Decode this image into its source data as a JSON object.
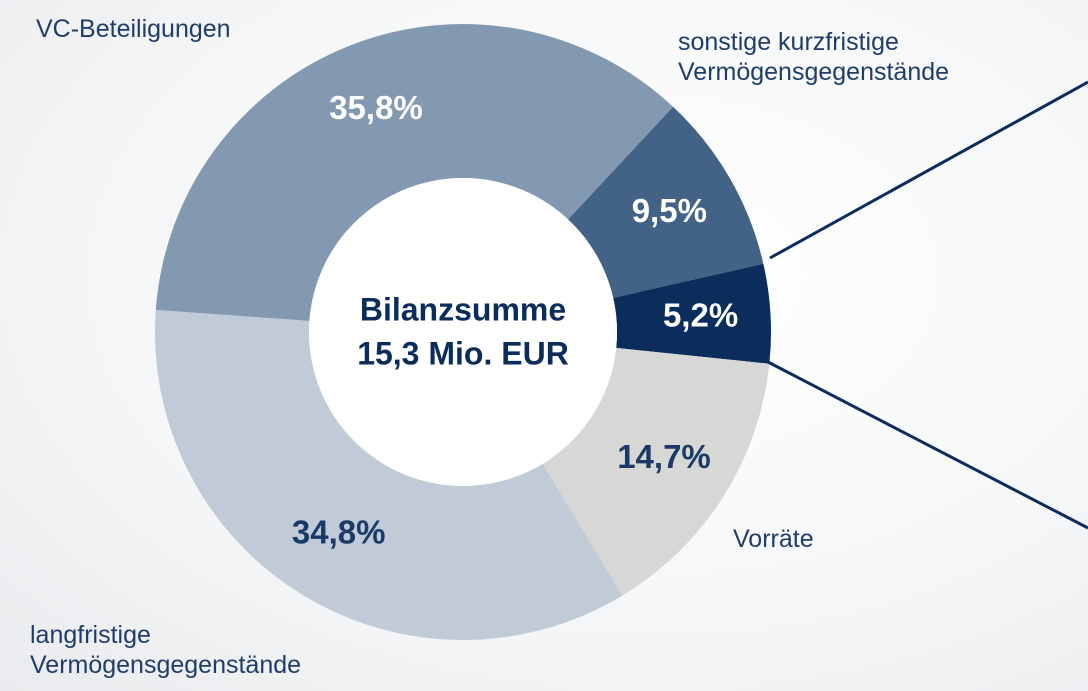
{
  "chart_data": {
    "type": "donut",
    "center_label": [
      "Bilanzsumme",
      "15,3 Mio. EUR"
    ],
    "categories": [
      "sonstige kurzfristige Vermögensgegenstände",
      null,
      "Vorräte",
      "langfristige Vermögensgegenstände",
      "VC-Beteiligungen"
    ],
    "values": [
      9.5,
      5.2,
      14.7,
      34.8,
      35.8
    ],
    "value_labels": [
      "9,5%",
      "5,2%",
      "14,7%",
      "34,8%",
      "35,8%"
    ],
    "colors": [
      "#426385",
      "#0b2d5c",
      "#d7d7d5",
      "#c1cbd8",
      "#8398b1"
    ]
  }
}
